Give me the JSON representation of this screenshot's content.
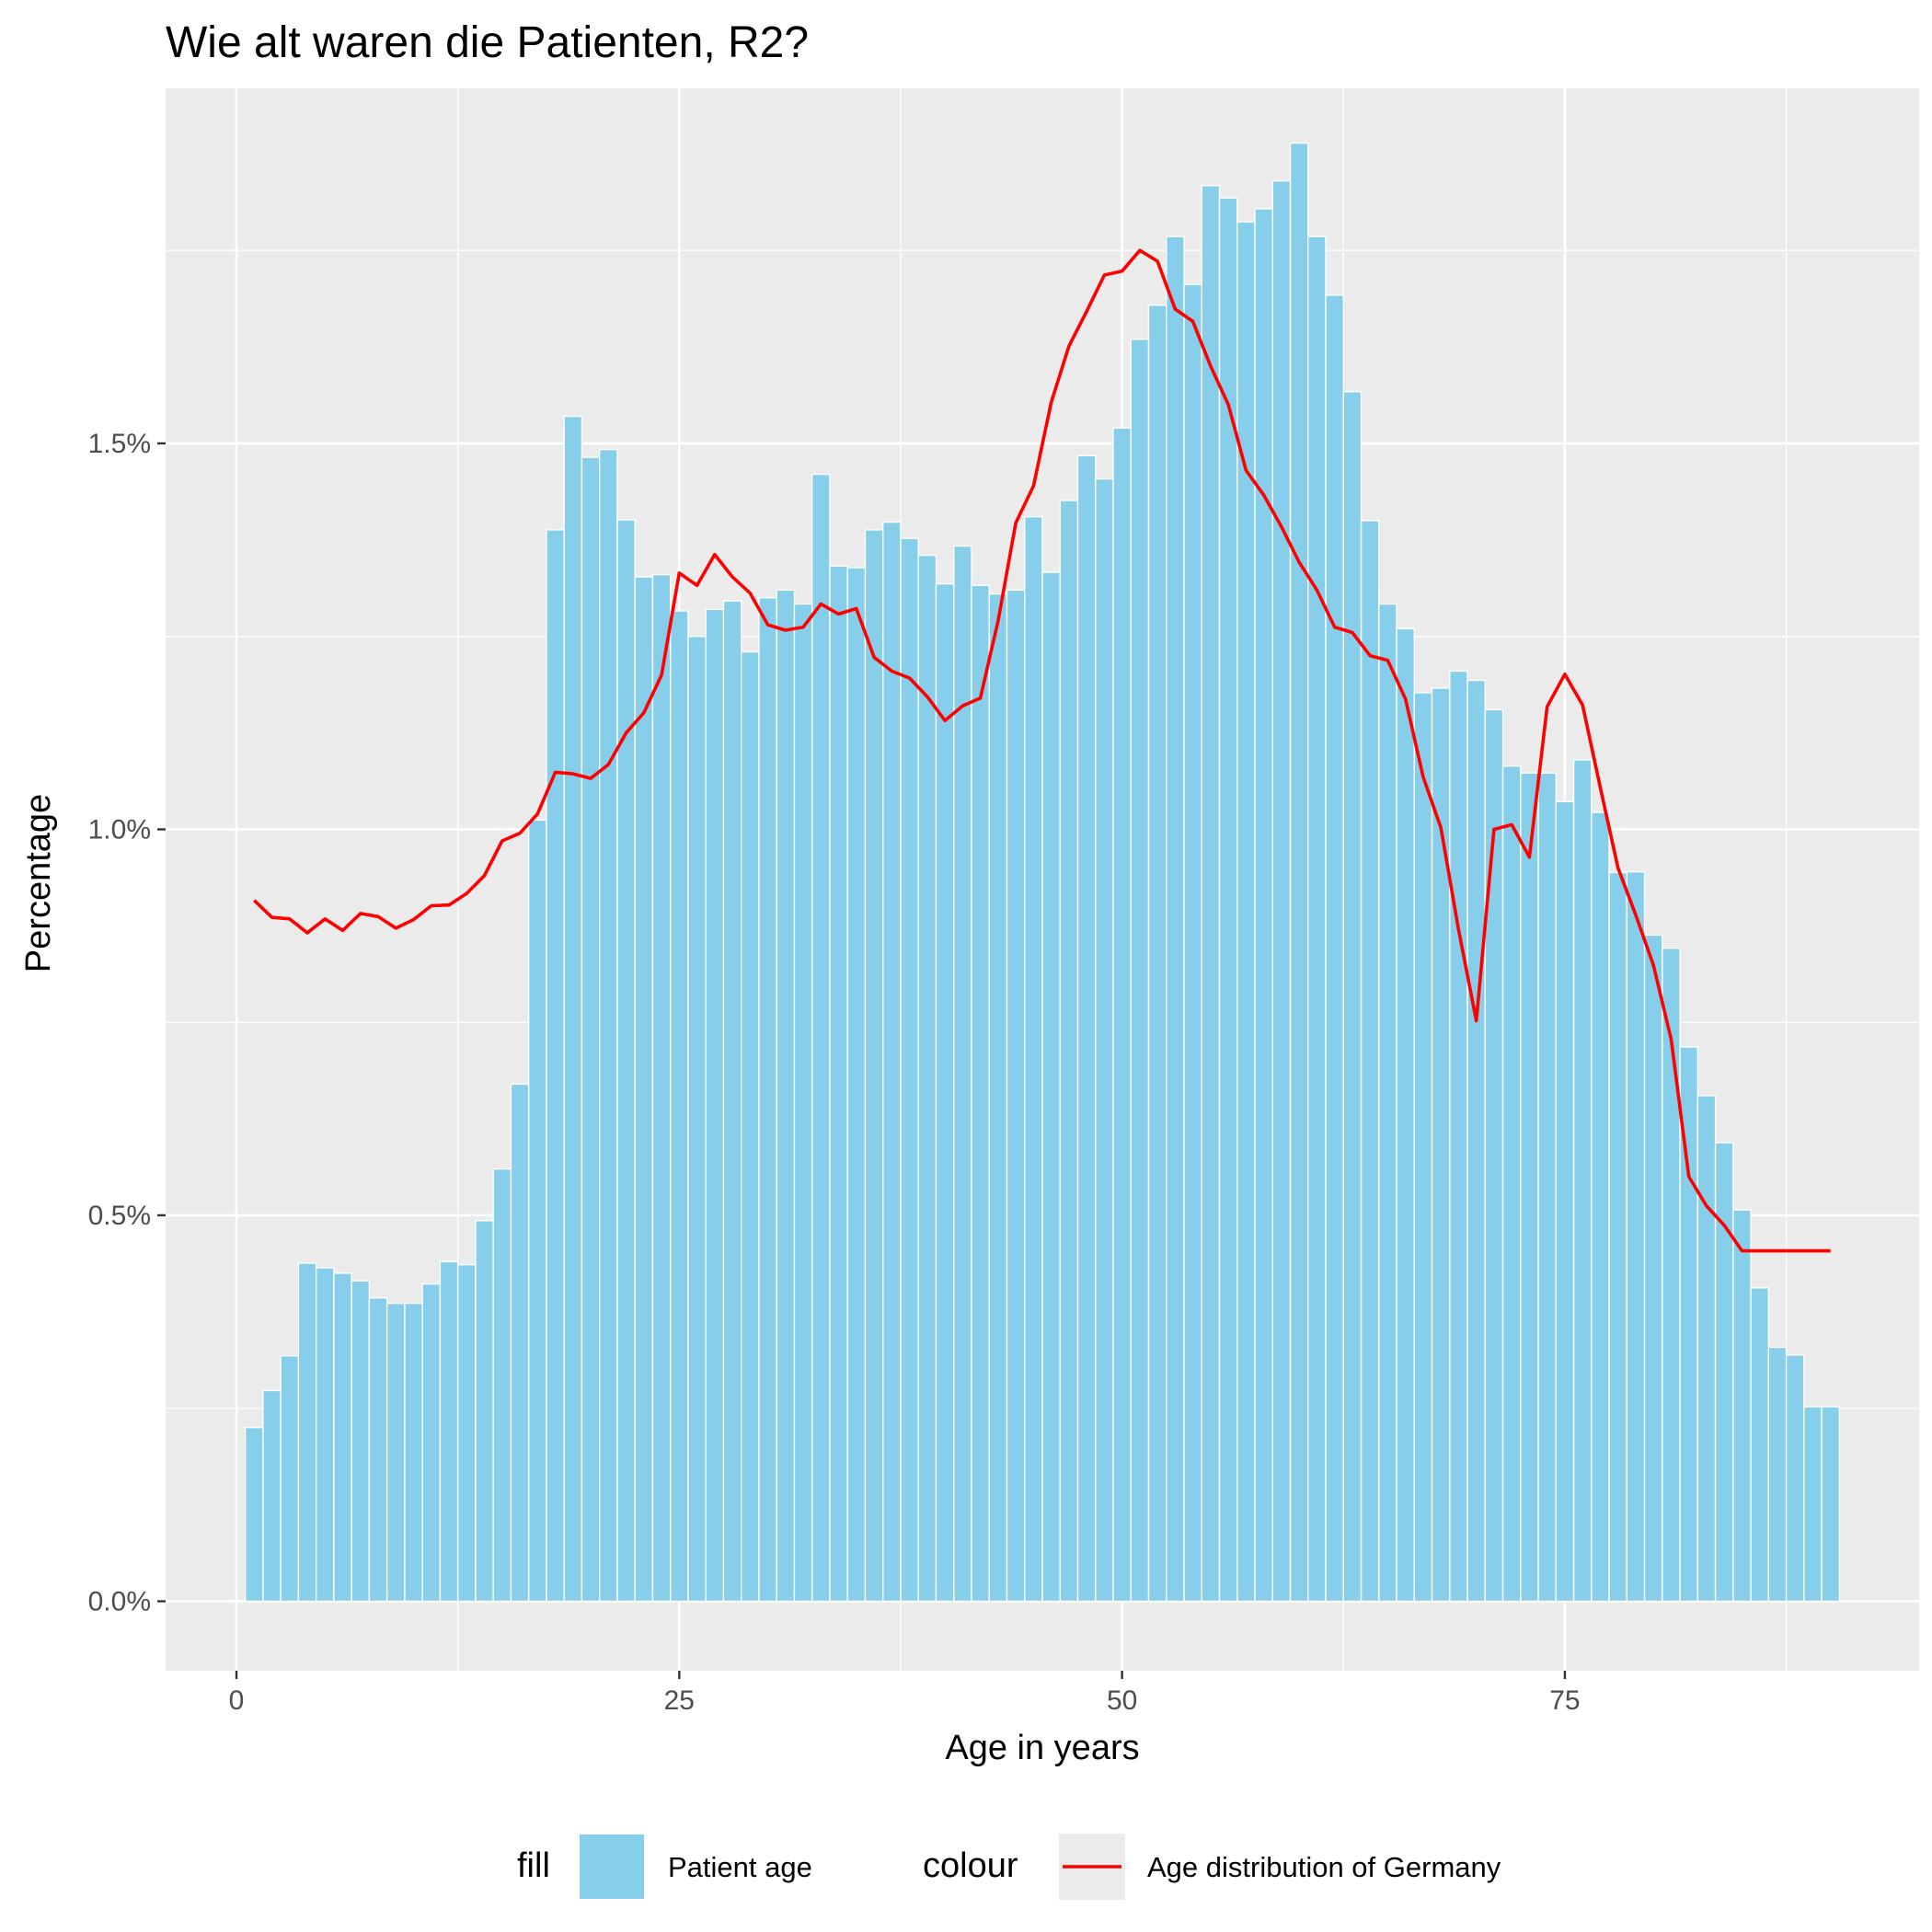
{
  "chart_data": {
    "type": "bar",
    "title": "Wie alt waren die Patienten, R2?",
    "xlabel": "Age in years",
    "ylabel": "Percentage",
    "xlim": [
      -4,
      95
    ],
    "ylim": [
      -0.09,
      1.96
    ],
    "x_ticks": [
      0,
      25,
      50,
      75
    ],
    "x_tick_labels": [
      "0",
      "25",
      "50",
      "75"
    ],
    "y_ticks": [
      0,
      0.5,
      1.0,
      1.5
    ],
    "y_tick_labels": [
      "0.0%",
      "0.5%",
      "1.0%",
      "1.5%"
    ],
    "grid": true,
    "legend_position": "bottom",
    "colors": {
      "panel": "#ebebeb",
      "grid": "#ffffff",
      "bar": "#87ceeb",
      "line": "#ff0000"
    },
    "legend": {
      "fill_title": "fill",
      "fill_label": "Patient age",
      "colour_title": "colour",
      "colour_label": "Age distribution of Germany"
    },
    "series": [
      {
        "name": "Patient age",
        "kind": "bar",
        "x": [
          1,
          2,
          3,
          4,
          5,
          6,
          7,
          8,
          9,
          10,
          11,
          12,
          13,
          14,
          15,
          16,
          17,
          18,
          19,
          20,
          21,
          22,
          23,
          24,
          25,
          26,
          27,
          28,
          29,
          30,
          31,
          32,
          33,
          34,
          35,
          36,
          37,
          38,
          39,
          40,
          41,
          42,
          43,
          44,
          45,
          46,
          47,
          48,
          49,
          50,
          51,
          52,
          53,
          54,
          55,
          56,
          57,
          58,
          59,
          60,
          61,
          62,
          63,
          64,
          65,
          66,
          67,
          68,
          69,
          70,
          71,
          72,
          73,
          74,
          75,
          76,
          77,
          78,
          79,
          80,
          81,
          82,
          83,
          84,
          85,
          86,
          87,
          88,
          89,
          90
        ],
        "values": [
          0.225,
          0.273,
          0.318,
          0.438,
          0.432,
          0.425,
          0.415,
          0.393,
          0.386,
          0.386,
          0.411,
          0.44,
          0.436,
          0.493,
          0.56,
          0.67,
          1.012,
          1.388,
          1.535,
          1.482,
          1.492,
          1.401,
          1.327,
          1.33,
          1.283,
          1.25,
          1.285,
          1.296,
          1.23,
          1.3,
          1.31,
          1.292,
          1.46,
          1.341,
          1.339,
          1.388,
          1.398,
          1.377,
          1.355,
          1.318,
          1.367,
          1.316,
          1.305,
          1.31,
          1.405,
          1.333,
          1.426,
          1.484,
          1.454,
          1.52,
          1.635,
          1.679,
          1.768,
          1.706,
          1.834,
          1.818,
          1.787,
          1.804,
          1.84,
          1.889,
          1.768,
          1.692,
          1.567,
          1.4,
          1.292,
          1.26,
          1.177,
          1.183,
          1.205,
          1.193,
          1.155,
          1.082,
          1.073,
          1.073,
          1.036,
          1.09,
          1.022,
          0.944,
          0.945,
          0.863,
          0.846,
          0.718,
          0.655,
          0.594,
          0.507,
          0.406,
          0.329,
          0.319,
          0.252,
          0.252
        ]
      },
      {
        "name": "Age distribution of Germany",
        "kind": "line",
        "x": [
          1,
          2,
          3,
          4,
          5,
          6,
          7,
          8,
          9,
          10,
          11,
          12,
          13,
          14,
          15,
          16,
          17,
          18,
          19,
          20,
          21,
          22,
          23,
          24,
          25,
          26,
          27,
          28,
          29,
          30,
          31,
          32,
          33,
          34,
          35,
          36,
          37,
          38,
          39,
          40,
          41,
          42,
          43,
          44,
          45,
          46,
          47,
          48,
          49,
          50,
          51,
          52,
          53,
          54,
          55,
          56,
          57,
          58,
          59,
          60,
          61,
          62,
          63,
          64,
          65,
          66,
          67,
          68,
          69,
          70,
          71,
          72,
          73,
          74,
          75,
          76,
          77,
          78,
          79,
          80,
          81,
          82,
          83,
          84,
          85,
          86,
          87,
          88,
          89,
          90
        ],
        "values": [
          0.908,
          0.886,
          0.884,
          0.866,
          0.884,
          0.869,
          0.891,
          0.887,
          0.872,
          0.883,
          0.901,
          0.902,
          0.917,
          0.94,
          0.985,
          0.995,
          1.02,
          1.074,
          1.072,
          1.066,
          1.084,
          1.125,
          1.151,
          1.2,
          1.332,
          1.316,
          1.356,
          1.327,
          1.306,
          1.265,
          1.258,
          1.262,
          1.292,
          1.279,
          1.286,
          1.223,
          1.205,
          1.196,
          1.172,
          1.141,
          1.16,
          1.17,
          1.27,
          1.397,
          1.445,
          1.553,
          1.626,
          1.671,
          1.718,
          1.723,
          1.75,
          1.736,
          1.674,
          1.658,
          1.6,
          1.55,
          1.465,
          1.433,
          1.392,
          1.346,
          1.31,
          1.262,
          1.255,
          1.225,
          1.219,
          1.169,
          1.068,
          1.002,
          0.87,
          0.752,
          1.0,
          1.006,
          0.964,
          1.159,
          1.201,
          1.161,
          1.054,
          0.95,
          0.889,
          0.824,
          0.728,
          0.55,
          0.512,
          0.487,
          0.454,
          0.454,
          0.454,
          0.454,
          0.454,
          0.454
        ]
      }
    ]
  }
}
